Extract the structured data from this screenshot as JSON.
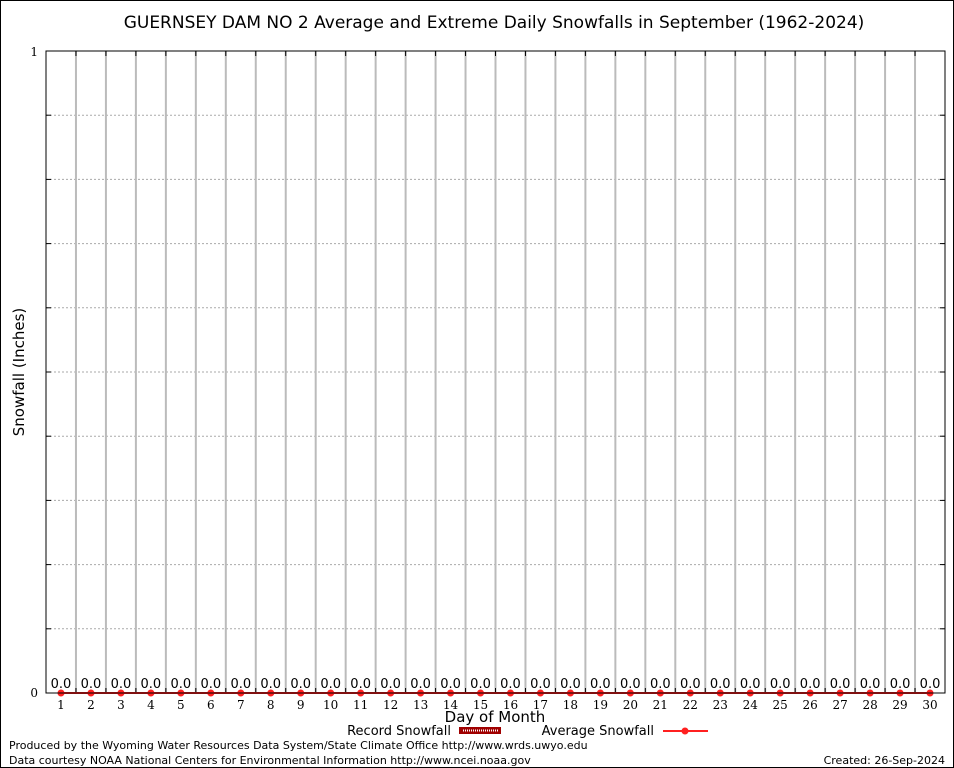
{
  "chart_data": {
    "type": "bar",
    "title": "GUERNSEY DAM NO 2 Average and Extreme Daily Snowfalls in September (1962-2024)",
    "xlabel": "Day of Month",
    "ylabel": "Snowfall (Inches)",
    "ylim": [
      0,
      1
    ],
    "y_ticks": [
      "0",
      "1"
    ],
    "grid": true,
    "categories": [
      "1",
      "2",
      "3",
      "4",
      "5",
      "6",
      "7",
      "8",
      "9",
      "10",
      "11",
      "12",
      "13",
      "14",
      "15",
      "16",
      "17",
      "18",
      "19",
      "20",
      "21",
      "22",
      "23",
      "24",
      "25",
      "26",
      "27",
      "28",
      "29",
      "30"
    ],
    "series": [
      {
        "name": "Record Snowfall",
        "type": "bar",
        "color": "#a00000",
        "values": [
          0,
          0,
          0,
          0,
          0,
          0,
          0,
          0,
          0,
          0,
          0,
          0,
          0,
          0,
          0,
          0,
          0,
          0,
          0,
          0,
          0,
          0,
          0,
          0,
          0,
          0,
          0,
          0,
          0,
          0
        ]
      },
      {
        "name": "Average Snowfall",
        "type": "line",
        "color": "#ff2020",
        "values": [
          0,
          0,
          0,
          0,
          0,
          0,
          0,
          0,
          0,
          0,
          0,
          0,
          0,
          0,
          0,
          0,
          0,
          0,
          0,
          0,
          0,
          0,
          0,
          0,
          0,
          0,
          0,
          0,
          0,
          0
        ]
      }
    ],
    "data_labels": [
      "0.0",
      "0.0",
      "0.0",
      "0.0",
      "0.0",
      "0.0",
      "0.0",
      "0.0",
      "0.0",
      "0.0",
      "0.0",
      "0.0",
      "0.0",
      "0.0",
      "0.0",
      "0.0",
      "0.0",
      "0.0",
      "0.0",
      "0.0",
      "0.0",
      "0.0",
      "0.0",
      "0.0",
      "0.0",
      "0.0",
      "0.0",
      "0.0",
      "0.0",
      "0.0"
    ],
    "legend": "bottom"
  },
  "footer": {
    "produced": "Produced by the Wyoming Water Resources Data System/State Climate Office http://www.wrds.uwyo.edu",
    "courtesy": "Data courtesy NOAA National Centers for Environmental Information http://www.ncei.noaa.gov",
    "created": "Created: 26-Sep-2024"
  }
}
